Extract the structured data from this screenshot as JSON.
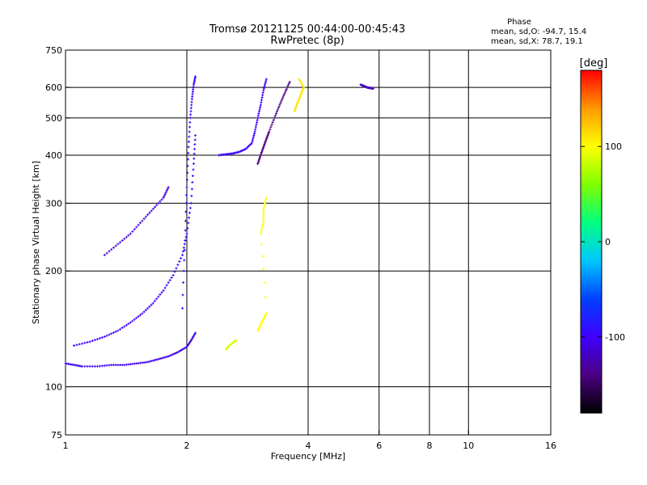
{
  "chart_data": {
    "type": "scatter",
    "title": "Tromsø 20121125 00:44:00-00:45:43",
    "subtitle": "RwPretec (8p)",
    "xlabel": "Frequency [MHz]",
    "ylabel": "Stationary phase Virtual Height [km]",
    "x_scale": "log",
    "y_scale": "log",
    "xlim": [
      1,
      16
    ],
    "ylim": [
      75,
      750
    ],
    "x_ticks": [
      1,
      2,
      4,
      6,
      8,
      10,
      16
    ],
    "x_tick_labels": [
      "1",
      "2",
      "4",
      "6",
      "8",
      "10",
      "16"
    ],
    "y_ticks": [
      75,
      100,
      200,
      300,
      400,
      500,
      600,
      750
    ],
    "y_tick_labels": [
      "75",
      "100",
      "200",
      "300",
      "400",
      "500",
      "600",
      "750"
    ],
    "x_gridlines": [
      2,
      4,
      6,
      8,
      10
    ],
    "y_gridlines": [
      100,
      200,
      300,
      400,
      500,
      600
    ],
    "grid": true,
    "stats": {
      "heading": "Phase",
      "line1": "mean, sd,O: -94.7, 15.4",
      "line2": "mean, sd,X:  78.7, 19.1"
    },
    "colorbar": {
      "label": "[deg]",
      "range": [
        -180,
        180
      ],
      "ticks": [
        100,
        0,
        -100
      ],
      "tick_labels": [
        "100",
        "0",
        "-100"
      ],
      "colormap": [
        "#000000",
        "#4b0082",
        "#3f00ff",
        "#0040ff",
        "#00c8ff",
        "#00ff80",
        "#80ff00",
        "#ffff00",
        "#ff9900",
        "#ff0000"
      ]
    },
    "series": [
      {
        "trace": "O-mode bottom-side trace (1.0-2.0 MHz)",
        "phase_deg": -105,
        "points": [
          [
            1.0,
            115
          ],
          [
            1.05,
            114
          ],
          [
            1.1,
            113
          ],
          [
            1.2,
            113
          ],
          [
            1.3,
            114
          ],
          [
            1.4,
            114
          ],
          [
            1.5,
            115
          ],
          [
            1.6,
            116
          ],
          [
            1.7,
            118
          ],
          [
            1.8,
            120
          ],
          [
            1.9,
            123
          ],
          [
            2.0,
            127
          ],
          [
            2.05,
            132
          ],
          [
            2.1,
            138
          ]
        ]
      },
      {
        "trace": "O-mode lower rising trace",
        "phase_deg": -100,
        "points": [
          [
            1.05,
            128
          ],
          [
            1.15,
            131
          ],
          [
            1.25,
            135
          ],
          [
            1.35,
            140
          ],
          [
            1.45,
            147
          ],
          [
            1.55,
            155
          ],
          [
            1.65,
            165
          ],
          [
            1.75,
            178
          ],
          [
            1.85,
            195
          ],
          [
            1.95,
            220
          ],
          [
            2.0,
            250
          ],
          [
            2.05,
            300
          ],
          [
            2.08,
            380
          ],
          [
            2.1,
            450
          ]
        ]
      },
      {
        "trace": "O-mode upper branch (2.0-2.1 MHz spread)",
        "phase_deg": -100,
        "points": [
          [
            1.95,
            160
          ],
          [
            1.98,
            240
          ],
          [
            2.0,
            330
          ],
          [
            2.02,
            420
          ],
          [
            2.04,
            500
          ],
          [
            2.06,
            560
          ],
          [
            2.08,
            610
          ],
          [
            2.1,
            640
          ]
        ]
      },
      {
        "trace": "O-mode oblique branch (1.2-1.8 MHz)",
        "phase_deg": -110,
        "points": [
          [
            1.25,
            220
          ],
          [
            1.35,
            235
          ],
          [
            1.45,
            250
          ],
          [
            1.55,
            270
          ],
          [
            1.65,
            290
          ],
          [
            1.75,
            310
          ],
          [
            1.8,
            330
          ]
        ]
      },
      {
        "trace": "F2 X-mode trace near 2.4-2.9 MHz",
        "phase_deg": -100,
        "points": [
          [
            2.4,
            400
          ],
          [
            2.5,
            402
          ],
          [
            2.6,
            404
          ],
          [
            2.7,
            408
          ],
          [
            2.8,
            415
          ],
          [
            2.9,
            430
          ],
          [
            2.95,
            460
          ],
          [
            3.0,
            500
          ],
          [
            3.05,
            540
          ],
          [
            3.1,
            590
          ],
          [
            3.15,
            630
          ]
        ]
      },
      {
        "trace": "X-mode trace near 3.0-3.5 MHz",
        "phase_deg": -140,
        "points": [
          [
            3.0,
            380
          ],
          [
            3.05,
            400
          ],
          [
            3.1,
            420
          ],
          [
            3.15,
            440
          ],
          [
            3.2,
            460
          ],
          [
            3.3,
            500
          ],
          [
            3.4,
            540
          ],
          [
            3.5,
            580
          ],
          [
            3.6,
            620
          ]
        ]
      },
      {
        "trace": "X-mode echoes near 3.7-3.9 MHz",
        "phase_deg": 110,
        "points": [
          [
            3.7,
            520
          ],
          [
            3.75,
            540
          ],
          [
            3.8,
            560
          ],
          [
            3.85,
            580
          ],
          [
            3.9,
            600
          ],
          [
            3.8,
            630
          ]
        ]
      },
      {
        "trace": "X-mode lower echoes near 3.0-3.3 MHz",
        "phase_deg": 100,
        "points": [
          [
            3.0,
            140
          ],
          [
            3.05,
            145
          ],
          [
            3.1,
            150
          ],
          [
            3.15,
            155
          ],
          [
            3.05,
            250
          ],
          [
            3.1,
            270
          ],
          [
            3.1,
            290
          ],
          [
            3.15,
            310
          ]
        ]
      },
      {
        "trace": "X-mode echoes near 2.5-2.7 MHz",
        "phase_deg": 90,
        "points": [
          [
            2.5,
            125
          ],
          [
            2.55,
            128
          ],
          [
            2.6,
            130
          ],
          [
            2.65,
            132
          ]
        ]
      },
      {
        "trace": "Oblique echoes near 5.5-5.8 MHz",
        "phase_deg": -120,
        "points": [
          [
            5.4,
            610
          ],
          [
            5.5,
            605
          ],
          [
            5.6,
            600
          ],
          [
            5.7,
            598
          ],
          [
            5.8,
            596
          ]
        ]
      }
    ]
  }
}
